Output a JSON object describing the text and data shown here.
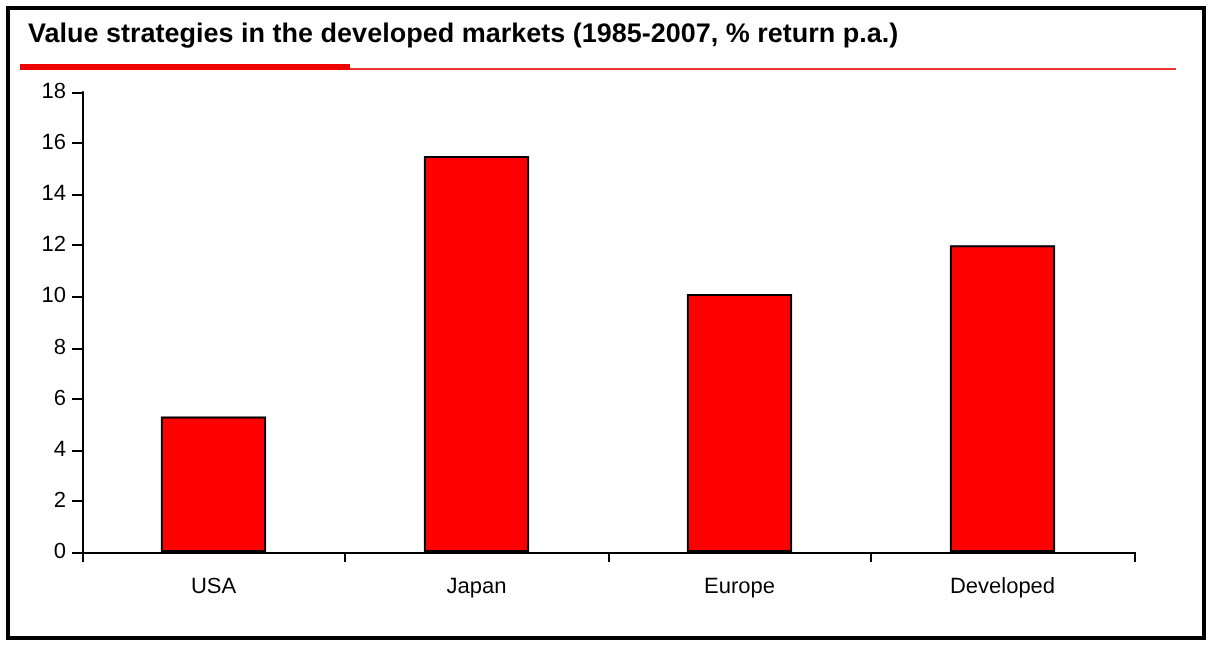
{
  "chart_data": {
    "type": "bar",
    "title": "Value strategies in the developed markets (1985-2007, % return p.a.)",
    "categories": [
      "USA",
      "Japan",
      "Europe",
      "Developed"
    ],
    "values": [
      5.3,
      15.5,
      10.1,
      12.0
    ],
    "color": "#ff0000",
    "ylim": [
      0,
      18
    ],
    "yticks": [
      0,
      2,
      4,
      6,
      8,
      10,
      12,
      14,
      16,
      18
    ],
    "grid": false
  }
}
